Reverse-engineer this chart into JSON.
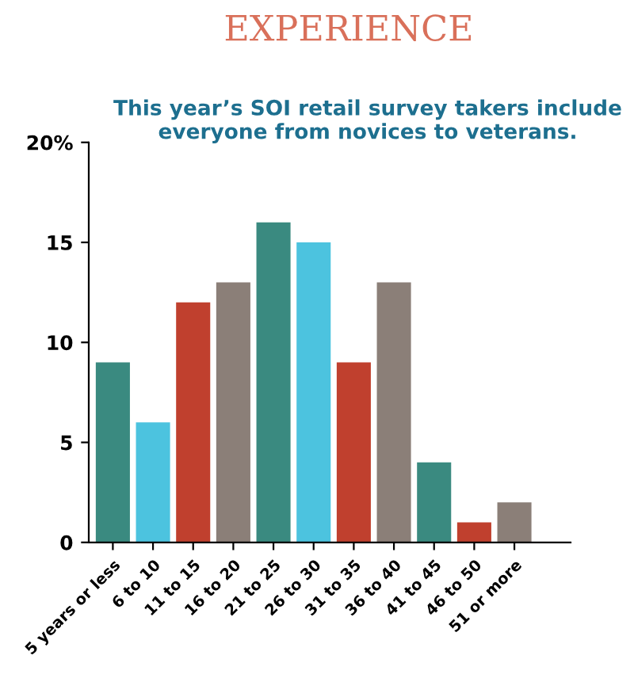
{
  "chart_data": {
    "type": "bar",
    "title": "EXPERIENCE",
    "subtitle": "This year’s SOI retail survey takers include everyone from novices to veterans.",
    "categories": [
      "5 years or less",
      "6 to 10",
      "11 to 15",
      "16 to 20",
      "21 to 25",
      "26 to 30",
      "31 to 35",
      "36 to 40",
      "41 to 45",
      "46 to 50",
      "51 or more"
    ],
    "values": [
      9,
      6,
      12,
      13,
      16,
      15,
      9,
      13,
      4,
      1,
      2
    ],
    "colors": [
      "#3a8a80",
      "#4cc3df",
      "#c0402e",
      "#8b7f78",
      "#3a8a80",
      "#4cc3df",
      "#c0402e",
      "#8b7f78",
      "#3a8a80",
      "#c0402e",
      "#8b7f78"
    ],
    "ylim": [
      0,
      20
    ],
    "yticks": [
      0,
      5,
      10,
      15,
      {
        "value": 20,
        "label": "20%"
      }
    ],
    "grid": false
  }
}
